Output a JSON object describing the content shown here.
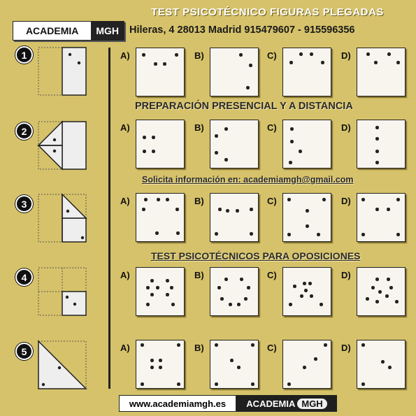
{
  "header": {
    "title": "TEST PSICOTÉCNICO FIGURAS PLEGADAS",
    "logo_word": "ACADEMIA",
    "logo_brand": "MGH",
    "address": "Hileras, 4  28013  Madrid  915479607 - 915596356"
  },
  "banners": {
    "preparacion": "PREPARACIÓN PRESENCIAL Y A DISTANCIA",
    "solicita": "Solicita información en: academiamgh@gmail.com",
    "test": "TEST PSICOTÉCNICOS PARA OPOSICIONES"
  },
  "questions": [
    {
      "number": "1",
      "options": [
        "A)",
        "B)",
        "C)",
        "D)"
      ]
    },
    {
      "number": "2",
      "options": [
        "A)",
        "B)",
        "C)",
        "D)"
      ]
    },
    {
      "number": "3",
      "options": [
        "A)",
        "B)",
        "C)",
        "D)"
      ]
    },
    {
      "number": "4",
      "options": [
        "A)",
        "B)",
        "C)",
        "D)"
      ]
    },
    {
      "number": "5",
      "options": [
        "A)",
        "B)",
        "C)",
        "D)"
      ]
    }
  ],
  "footer": {
    "url": "www.academiamgh.es",
    "logo_word": "ACADEMIA",
    "logo_brand": "MGH"
  }
}
